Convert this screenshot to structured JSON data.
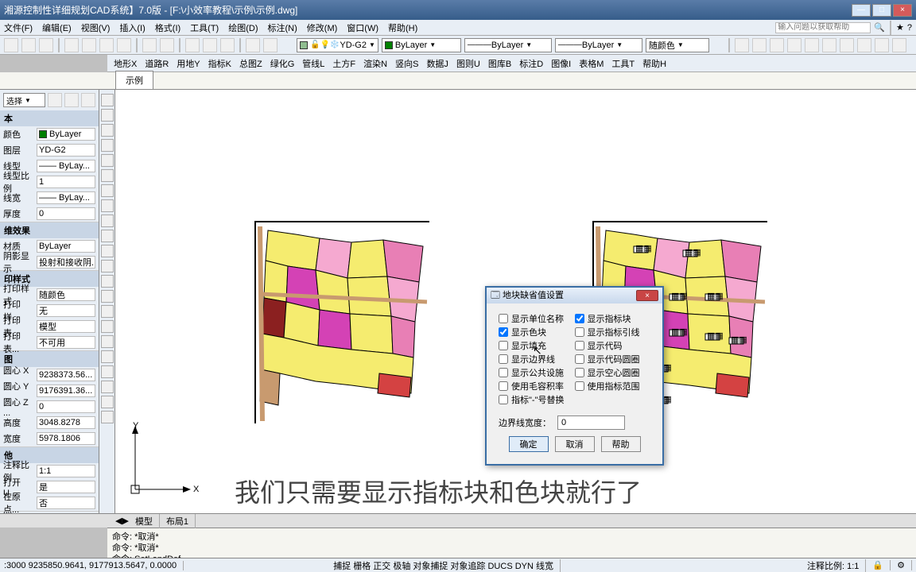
{
  "title": "湘源控制性详细规划CAD系统】7.0版 - [F:\\小效率教程\\示例\\示例.dwg]",
  "winbtns": {
    "min": "—",
    "max": "□",
    "close": "×"
  },
  "menu1": [
    "文件(F)",
    "编辑(E)",
    "视图(V)",
    "插入(I)",
    "格式(I)",
    "工具(T)",
    "绘图(D)",
    "标注(N)",
    "修改(M)",
    "窗口(W)",
    "帮助(H)"
  ],
  "help_placeholder": "输入问题以获取帮助",
  "layer_combo": {
    "name": "YD-G2",
    "color": "#8fbc8f"
  },
  "layer_tools": [
    {
      "label": "ByLayer",
      "color": "#008000"
    },
    {
      "label": "ByLayer",
      "line": true
    },
    {
      "label": "ByLayer",
      "line": true
    },
    {
      "label": "随颜色",
      "line": false
    }
  ],
  "menu2": [
    "地形X",
    "道路R",
    "用地Y",
    "指标K",
    "总图Z",
    "绿化G",
    "管线L",
    "土方F",
    "渲染N",
    "竖向S",
    "数据J",
    "图则U",
    "图库B",
    "标注D",
    "图像I",
    "表格M",
    "工具T",
    "帮助H"
  ],
  "tab": "示例",
  "panels": {
    "basic": {
      "title": "本",
      "rows": [
        {
          "lbl": "颜色",
          "val": "ByLayer",
          "sw": "#008000"
        },
        {
          "lbl": "图层",
          "val": "YD-G2"
        },
        {
          "lbl": "线型",
          "val": "—— ByLay..."
        },
        {
          "lbl": "线型比例",
          "val": "1"
        },
        {
          "lbl": "线宽",
          "val": "—— ByLay..."
        },
        {
          "lbl": "厚度",
          "val": "0"
        }
      ]
    },
    "effect": {
      "title": "维效果",
      "rows": [
        {
          "lbl": "材质",
          "val": "ByLayer"
        },
        {
          "lbl": "阴影显示",
          "val": "投射和接收阴..."
        }
      ]
    },
    "print": {
      "title": "印样式",
      "rows": [
        {
          "lbl": "打印样式",
          "val": "随颜色"
        },
        {
          "lbl": "打印样...",
          "val": "无"
        },
        {
          "lbl": "打印表...",
          "val": "模型"
        },
        {
          "lbl": "打印表...",
          "val": "不可用"
        }
      ]
    },
    "view": {
      "title": "图",
      "rows": [
        {
          "lbl": "圆心 X ...",
          "val": "9238373.56..."
        },
        {
          "lbl": "圆心 Y ...",
          "val": "9176391.36..."
        },
        {
          "lbl": "圆心 Z ...",
          "val": "0"
        },
        {
          "lbl": "高度",
          "val": "3048.8278"
        },
        {
          "lbl": "宽度",
          "val": "5978.1806"
        }
      ]
    },
    "other": {
      "title": "他",
      "rows": [
        {
          "lbl": "注释比例",
          "val": "1:1"
        },
        {
          "lbl": "打开 U...",
          "val": "是"
        },
        {
          "lbl": "在原点...",
          "val": "否"
        }
      ]
    }
  },
  "dialog": {
    "title": "地块缺省值设置",
    "left": [
      {
        "label": "显示单位名称",
        "checked": false
      },
      {
        "label": "显示色块",
        "checked": true
      },
      {
        "label": "显示填充",
        "checked": false
      },
      {
        "label": "显示边界线",
        "checked": false
      },
      {
        "label": "显示公共设施",
        "checked": false
      },
      {
        "label": "使用毛容积率",
        "checked": false
      },
      {
        "label": "指标\"-\"号替换",
        "checked": false
      }
    ],
    "right": [
      {
        "label": "显示指标块",
        "checked": true
      },
      {
        "label": "显示指标引线",
        "checked": false
      },
      {
        "label": "显示代码",
        "checked": false
      },
      {
        "label": "显示代码圆圈",
        "checked": false
      },
      {
        "label": "显示空心圆圈",
        "checked": false
      },
      {
        "label": "使用指标范围",
        "checked": false
      }
    ],
    "border_label": "边界线宽度：",
    "border_val": "0",
    "ok": "确定",
    "cancel": "取消",
    "help": "帮助"
  },
  "bottom_tabs": [
    "模型",
    "布局1"
  ],
  "cmd": [
    "命令: *取消*",
    "命令: *取消*",
    "命令: SetLandDef"
  ],
  "status": {
    "coords": ":3000 9235850.9641, 9177913.5647, 0.0000",
    "items": [
      "捕捉",
      "栅格",
      "正交",
      "极轴",
      "对象捕捉",
      "对象追踪",
      "DUCS",
      "DYN",
      "线宽"
    ],
    "scale": "注释比例: 1:1"
  },
  "subtitle": "我们只需要显示指标块和色块就行了",
  "map_colors": {
    "yellow": "#f5ec6f",
    "pink": "#f5a9d0",
    "magenta": "#d442b5",
    "darkpink": "#e87fb5",
    "orange": "#e8b56f",
    "darkred": "#8b2020",
    "red": "#d44242",
    "brown": "#8b6f42",
    "road": "#c89a6f"
  }
}
